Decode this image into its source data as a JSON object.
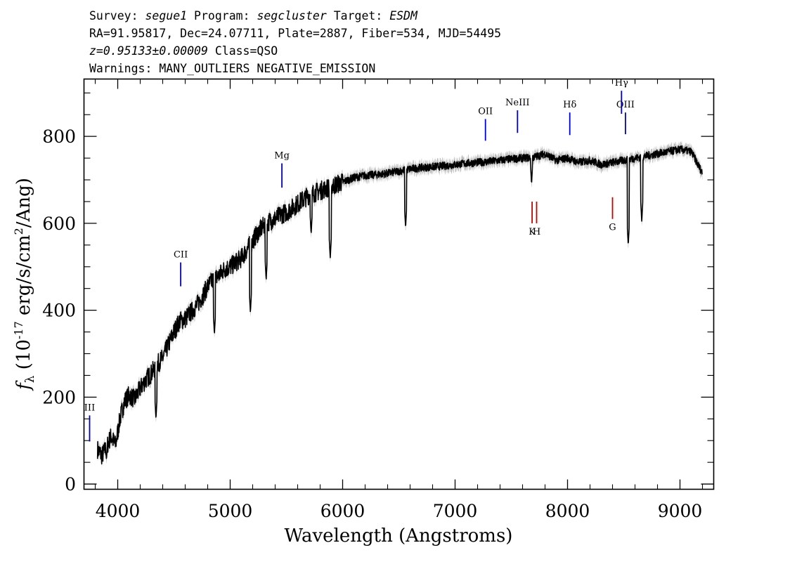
{
  "header": {
    "line1": [
      {
        "text": "Survey: ",
        "italic": false
      },
      {
        "text": "segue1",
        "italic": true
      },
      {
        "text": " Program: ",
        "italic": false
      },
      {
        "text": "segcluster",
        "italic": true
      },
      {
        "text": " Target: ",
        "italic": false
      },
      {
        "text": "ESDM",
        "italic": true
      }
    ],
    "line2": "RA=91.95817, Dec=24.07711, Plate=2887, Fiber=534, MJD=54495",
    "line3": [
      {
        "text": "z=0.95133±0.00009",
        "italic": true
      },
      {
        "text": " Class=QSO",
        "italic": false
      }
    ],
    "line4": "Warnings: MANY_OUTLIERS NEGATIVE_EMISSION"
  },
  "chart_data": {
    "type": "line",
    "title": "",
    "xlabel": "Wavelength (Angstroms)",
    "ylabel": "f_λ (10^-17 erg/s/cm^2/Ang)",
    "ylabel_parts": {
      "f": "f",
      "lambda": "λ",
      "open": " (10",
      "exp": "-17",
      "mid": " erg/s/cm",
      "exp2": "2",
      "close": "/Ang)"
    },
    "xlim": [
      3700,
      9300
    ],
    "ylim": [
      -12,
      932
    ],
    "xticks": [
      4000,
      5000,
      6000,
      7000,
      8000,
      9000
    ],
    "yticks": [
      0,
      200,
      400,
      600,
      800
    ],
    "xtick_labels": [
      "4000",
      "5000",
      "6000",
      "7000",
      "8000",
      "9000"
    ],
    "ytick_labels": [
      "0",
      "200",
      "400",
      "600",
      "800"
    ],
    "grid": false,
    "series": [
      {
        "role": "flux",
        "color": "#000000",
        "x": [
          3820,
          3860,
          3900,
          3940,
          3980,
          4020,
          4060,
          4100,
          4150,
          4200,
          4250,
          4300,
          4350,
          4400,
          4450,
          4500,
          4550,
          4600,
          4650,
          4700,
          4750,
          4800,
          4850,
          4900,
          4950,
          5000,
          5050,
          5100,
          5150,
          5200,
          5250,
          5300,
          5350,
          5400,
          5450,
          5500,
          5550,
          5600,
          5650,
          5700,
          5750,
          5800,
          5850,
          5900,
          5950,
          6000,
          6100,
          6200,
          6300,
          6400,
          6500,
          6600,
          6700,
          6800,
          6900,
          7000,
          7100,
          7200,
          7300,
          7400,
          7500,
          7600,
          7700,
          7800,
          7900,
          8000,
          8100,
          8200,
          8300,
          8400,
          8500,
          8600,
          8700,
          8800,
          8900,
          9000,
          9100,
          9200
        ],
        "y": [
          80,
          65,
          85,
          110,
          90,
          150,
          190,
          205,
          195,
          220,
          240,
          255,
          275,
          290,
          320,
          350,
          375,
          380,
          395,
          410,
          430,
          455,
          470,
          480,
          495,
          500,
          510,
          520,
          540,
          560,
          580,
          595,
          605,
          610,
          620,
          625,
          635,
          645,
          655,
          665,
          670,
          675,
          680,
          685,
          690,
          695,
          705,
          710,
          712,
          715,
          720,
          725,
          728,
          730,
          732,
          735,
          738,
          740,
          742,
          745,
          748,
          750,
          752,
          760,
          745,
          750,
          740,
          745,
          735,
          740,
          745,
          750,
          755,
          760,
          765,
          770,
          765,
          715
        ],
        "absorption": [
          {
            "x": 3900,
            "y": 55
          },
          {
            "x": 4340,
            "y": 150
          },
          {
            "x": 4860,
            "y": 345
          },
          {
            "x": 5180,
            "y": 395
          },
          {
            "x": 5320,
            "y": 470
          },
          {
            "x": 5720,
            "y": 575
          },
          {
            "x": 5890,
            "y": 520
          },
          {
            "x": 6560,
            "y": 590
          },
          {
            "x": 7680,
            "y": 690
          },
          {
            "x": 8540,
            "y": 550
          },
          {
            "x": 8660,
            "y": 605
          }
        ]
      },
      {
        "role": "error",
        "color": "#b4b4b4",
        "error": 12
      }
    ],
    "line_markers": [
      {
        "label": "III",
        "x": 3750,
        "y_bottom": 98,
        "y_top": 158,
        "color": "#0000cc",
        "kind": "emission",
        "label_pos": "above"
      },
      {
        "label": "CII",
        "x": 4560,
        "y_bottom": 455,
        "y_top": 510,
        "color": "#0000cc",
        "kind": "emission",
        "label_pos": "above"
      },
      {
        "label": "Mg",
        "x": 5460,
        "y_bottom": 682,
        "y_top": 738,
        "color": "#0000cc",
        "kind": "emission",
        "label_pos": "above"
      },
      {
        "label": "OII",
        "x": 7270,
        "y_bottom": 790,
        "y_top": 840,
        "color": "#0000cc",
        "kind": "emission",
        "label_pos": "above"
      },
      {
        "label": "NeIII",
        "x": 7555,
        "y_bottom": 808,
        "y_top": 860,
        "color": "#0000cc",
        "kind": "emission",
        "label_pos": "above"
      },
      {
        "label": "Hδ",
        "x": 8020,
        "y_bottom": 803,
        "y_top": 855,
        "color": "#0000cc",
        "kind": "emission",
        "label_pos": "above"
      },
      {
        "label": "Hγ",
        "x": 8480,
        "y_bottom": 852,
        "y_top": 905,
        "color": "#0000cc",
        "kind": "emission",
        "label_pos": "above"
      },
      {
        "label": "OIII",
        "x": 8515,
        "y_bottom": 805,
        "y_top": 855,
        "color": "#0000cc",
        "kind": "emission",
        "label_pos": "above"
      },
      {
        "label": "K",
        "x": 7685,
        "y_bottom": 600,
        "y_top": 650,
        "color": "#cc0000",
        "kind": "absorption",
        "label_pos": "below"
      },
      {
        "label": "H",
        "x": 7725,
        "y_bottom": 600,
        "y_top": 650,
        "color": "#cc0000",
        "kind": "absorption",
        "label_pos": "below"
      },
      {
        "label": "G",
        "x": 8400,
        "y_bottom": 610,
        "y_top": 660,
        "color": "#cc0000",
        "kind": "absorption",
        "label_pos": "below"
      }
    ]
  }
}
